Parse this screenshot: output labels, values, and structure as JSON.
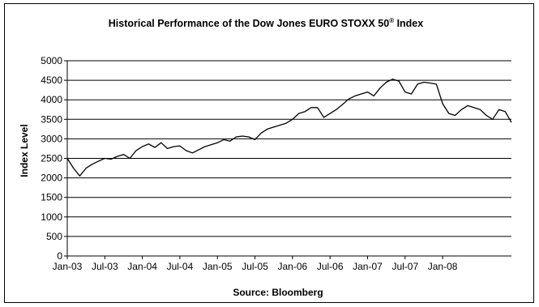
{
  "chart_data": {
    "type": "line",
    "title": "Historical Performance of the Dow Jones EURO STOXX 50",
    "title_superscript": "®",
    "title_suffix": " Index",
    "xlabel": "Source: Bloomberg",
    "ylabel": "Index Level",
    "ylim": [
      0,
      5000
    ],
    "ytick_step": 500,
    "yticks": [
      "0",
      "500",
      "1000",
      "1500",
      "2000",
      "2500",
      "3000",
      "3500",
      "4000",
      "4500",
      "5000"
    ],
    "xlim": [
      "2003-01",
      "2008-12"
    ],
    "xticks": [
      {
        "label": "Jan-03",
        "date": "2003-01"
      },
      {
        "label": "Jul-03",
        "date": "2003-07"
      },
      {
        "label": "Jan-04",
        "date": "2004-01"
      },
      {
        "label": "Jul-04",
        "date": "2004-07"
      },
      {
        "label": "Jan-05",
        "date": "2005-01"
      },
      {
        "label": "Jul-05",
        "date": "2005-07"
      },
      {
        "label": "Jan-06",
        "date": "2006-01"
      },
      {
        "label": "Jul-06",
        "date": "2006-07"
      },
      {
        "label": "Jan-07",
        "date": "2007-01"
      },
      {
        "label": "Jul-07",
        "date": "2007-07"
      },
      {
        "label": "Jan-08",
        "date": "2008-01"
      }
    ],
    "grid": "horizontal",
    "line_color": "#000000",
    "series": [
      {
        "x": [
          "2003-01",
          "2003-02",
          "2003-03",
          "2003-04",
          "2003-05",
          "2003-06",
          "2003-07",
          "2003-08",
          "2003-09",
          "2003-10",
          "2003-11",
          "2003-12",
          "2004-01",
          "2004-02",
          "2004-03",
          "2004-04",
          "2004-05",
          "2004-06",
          "2004-07",
          "2004-08",
          "2004-09",
          "2004-10",
          "2004-11",
          "2004-12",
          "2005-01",
          "2005-02",
          "2005-03",
          "2005-04",
          "2005-05",
          "2005-06",
          "2005-07",
          "2005-08",
          "2005-09",
          "2005-10",
          "2005-11",
          "2005-12",
          "2006-01",
          "2006-02",
          "2006-03",
          "2006-04",
          "2006-05",
          "2006-06",
          "2006-07",
          "2006-08",
          "2006-09",
          "2006-10",
          "2006-11",
          "2006-12",
          "2007-01",
          "2007-02",
          "2007-03",
          "2007-04",
          "2007-05",
          "2007-06",
          "2007-07",
          "2007-08",
          "2007-09",
          "2007-10",
          "2007-11",
          "2007-12",
          "2008-01",
          "2008-02",
          "2008-03",
          "2008-04",
          "2008-05",
          "2008-06",
          "2008-07",
          "2008-08",
          "2008-09",
          "2008-10",
          "2008-11",
          "2008-12"
        ],
        "values": [
          2500,
          2250,
          2050,
          2250,
          2350,
          2430,
          2500,
          2480,
          2550,
          2600,
          2500,
          2700,
          2800,
          2870,
          2780,
          2900,
          2750,
          2800,
          2820,
          2700,
          2640,
          2720,
          2800,
          2850,
          2900,
          2980,
          2940,
          3050,
          3070,
          3050,
          2980,
          3150,
          3250,
          3300,
          3350,
          3400,
          3500,
          3650,
          3700,
          3800,
          3800,
          3550,
          3650,
          3750,
          3880,
          4020,
          4100,
          4150,
          4200,
          4100,
          4300,
          4450,
          4530,
          4480,
          4200,
          4150,
          4400,
          4450,
          4430,
          4400,
          3900,
          3650,
          3600,
          3750,
          3850,
          3800,
          3750,
          3600,
          3500,
          3750,
          3700,
          3420
        ]
      }
    ]
  }
}
